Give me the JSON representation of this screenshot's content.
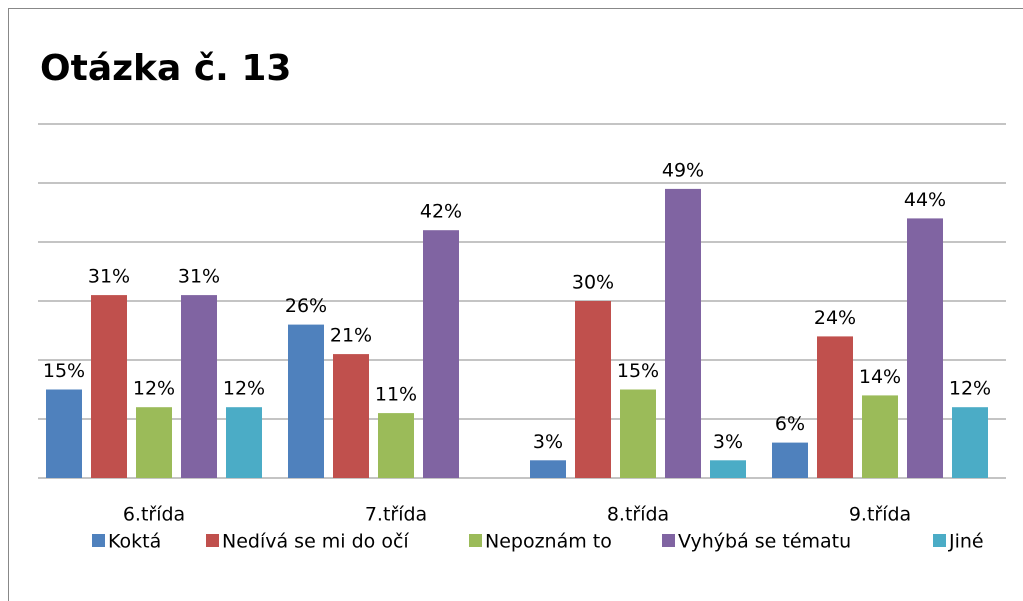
{
  "chart_data": {
    "type": "bar",
    "title": "Otázka č. 13",
    "categories": [
      "6.třída",
      "7.třída",
      "8.třída",
      "9.třída"
    ],
    "series": [
      {
        "name": "Koktá",
        "color": "#4f81bd",
        "values": [
          15,
          26,
          3,
          6
        ],
        "value_labels": [
          "15%",
          "26%",
          "3%",
          "6%"
        ]
      },
      {
        "name": "Nedívá se mi do očí",
        "color": "#c0504d",
        "values": [
          31,
          21,
          30,
          24
        ],
        "value_labels": [
          "31%",
          "21%",
          "30%",
          "24%"
        ]
      },
      {
        "name": "Nepoznám to",
        "color": "#9bbb59",
        "values": [
          12,
          11,
          15,
          14
        ],
        "value_labels": [
          "12%",
          "11%",
          "15%",
          "14%"
        ]
      },
      {
        "name": "Vyhýbá se tématu",
        "color": "#8064a2",
        "values": [
          31,
          42,
          49,
          44
        ],
        "value_labels": [
          "31%",
          "42%",
          "49%",
          "44%"
        ]
      },
      {
        "name": "Jiné",
        "color": "#4bacc6",
        "values": [
          12,
          null,
          3,
          12
        ],
        "value_labels": [
          "12%",
          null,
          "3%",
          "12%"
        ]
      }
    ],
    "ylim": [
      0,
      60
    ],
    "yticks": [
      0,
      10,
      20,
      30,
      40,
      50,
      60
    ],
    "grid": true,
    "legend": "bottom"
  }
}
